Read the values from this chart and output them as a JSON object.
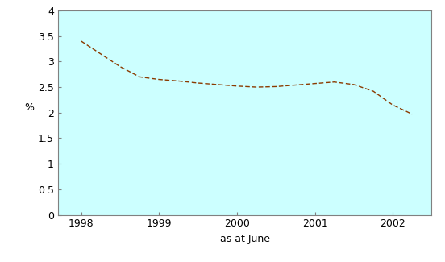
{
  "x": [
    1998.0,
    1998.25,
    1998.5,
    1998.75,
    1999.0,
    1999.25,
    1999.5,
    1999.75,
    2000.0,
    2000.25,
    2000.5,
    2000.75,
    2001.0,
    2001.25,
    2001.5,
    2001.75,
    2002.0,
    2002.25
  ],
  "y": [
    3.4,
    3.15,
    2.9,
    2.7,
    2.65,
    2.62,
    2.58,
    2.55,
    2.52,
    2.5,
    2.51,
    2.54,
    2.57,
    2.6,
    2.55,
    2.42,
    2.15,
    1.97
  ],
  "xlabel": "as at June",
  "ylabel": "%",
  "ylim": [
    0,
    4
  ],
  "xlim": [
    1997.7,
    2002.5
  ],
  "xticks": [
    1998,
    1999,
    2000,
    2001,
    2002
  ],
  "yticks": [
    0,
    0.5,
    1.0,
    1.5,
    2.0,
    2.5,
    3.0,
    3.5,
    4.0
  ],
  "ytick_labels": [
    "0",
    "0.5",
    "1",
    "1.5",
    "2",
    "2.5",
    "3",
    "3.5",
    "4"
  ],
  "line_color": "#8B3A00",
  "background_color": "#CCFFFF",
  "fig_background": "#FFFFFF",
  "spine_color": "#808080",
  "tick_color": "#000000",
  "xlabel_fontsize": 9,
  "ylabel_fontsize": 9,
  "tick_fontsize": 9
}
